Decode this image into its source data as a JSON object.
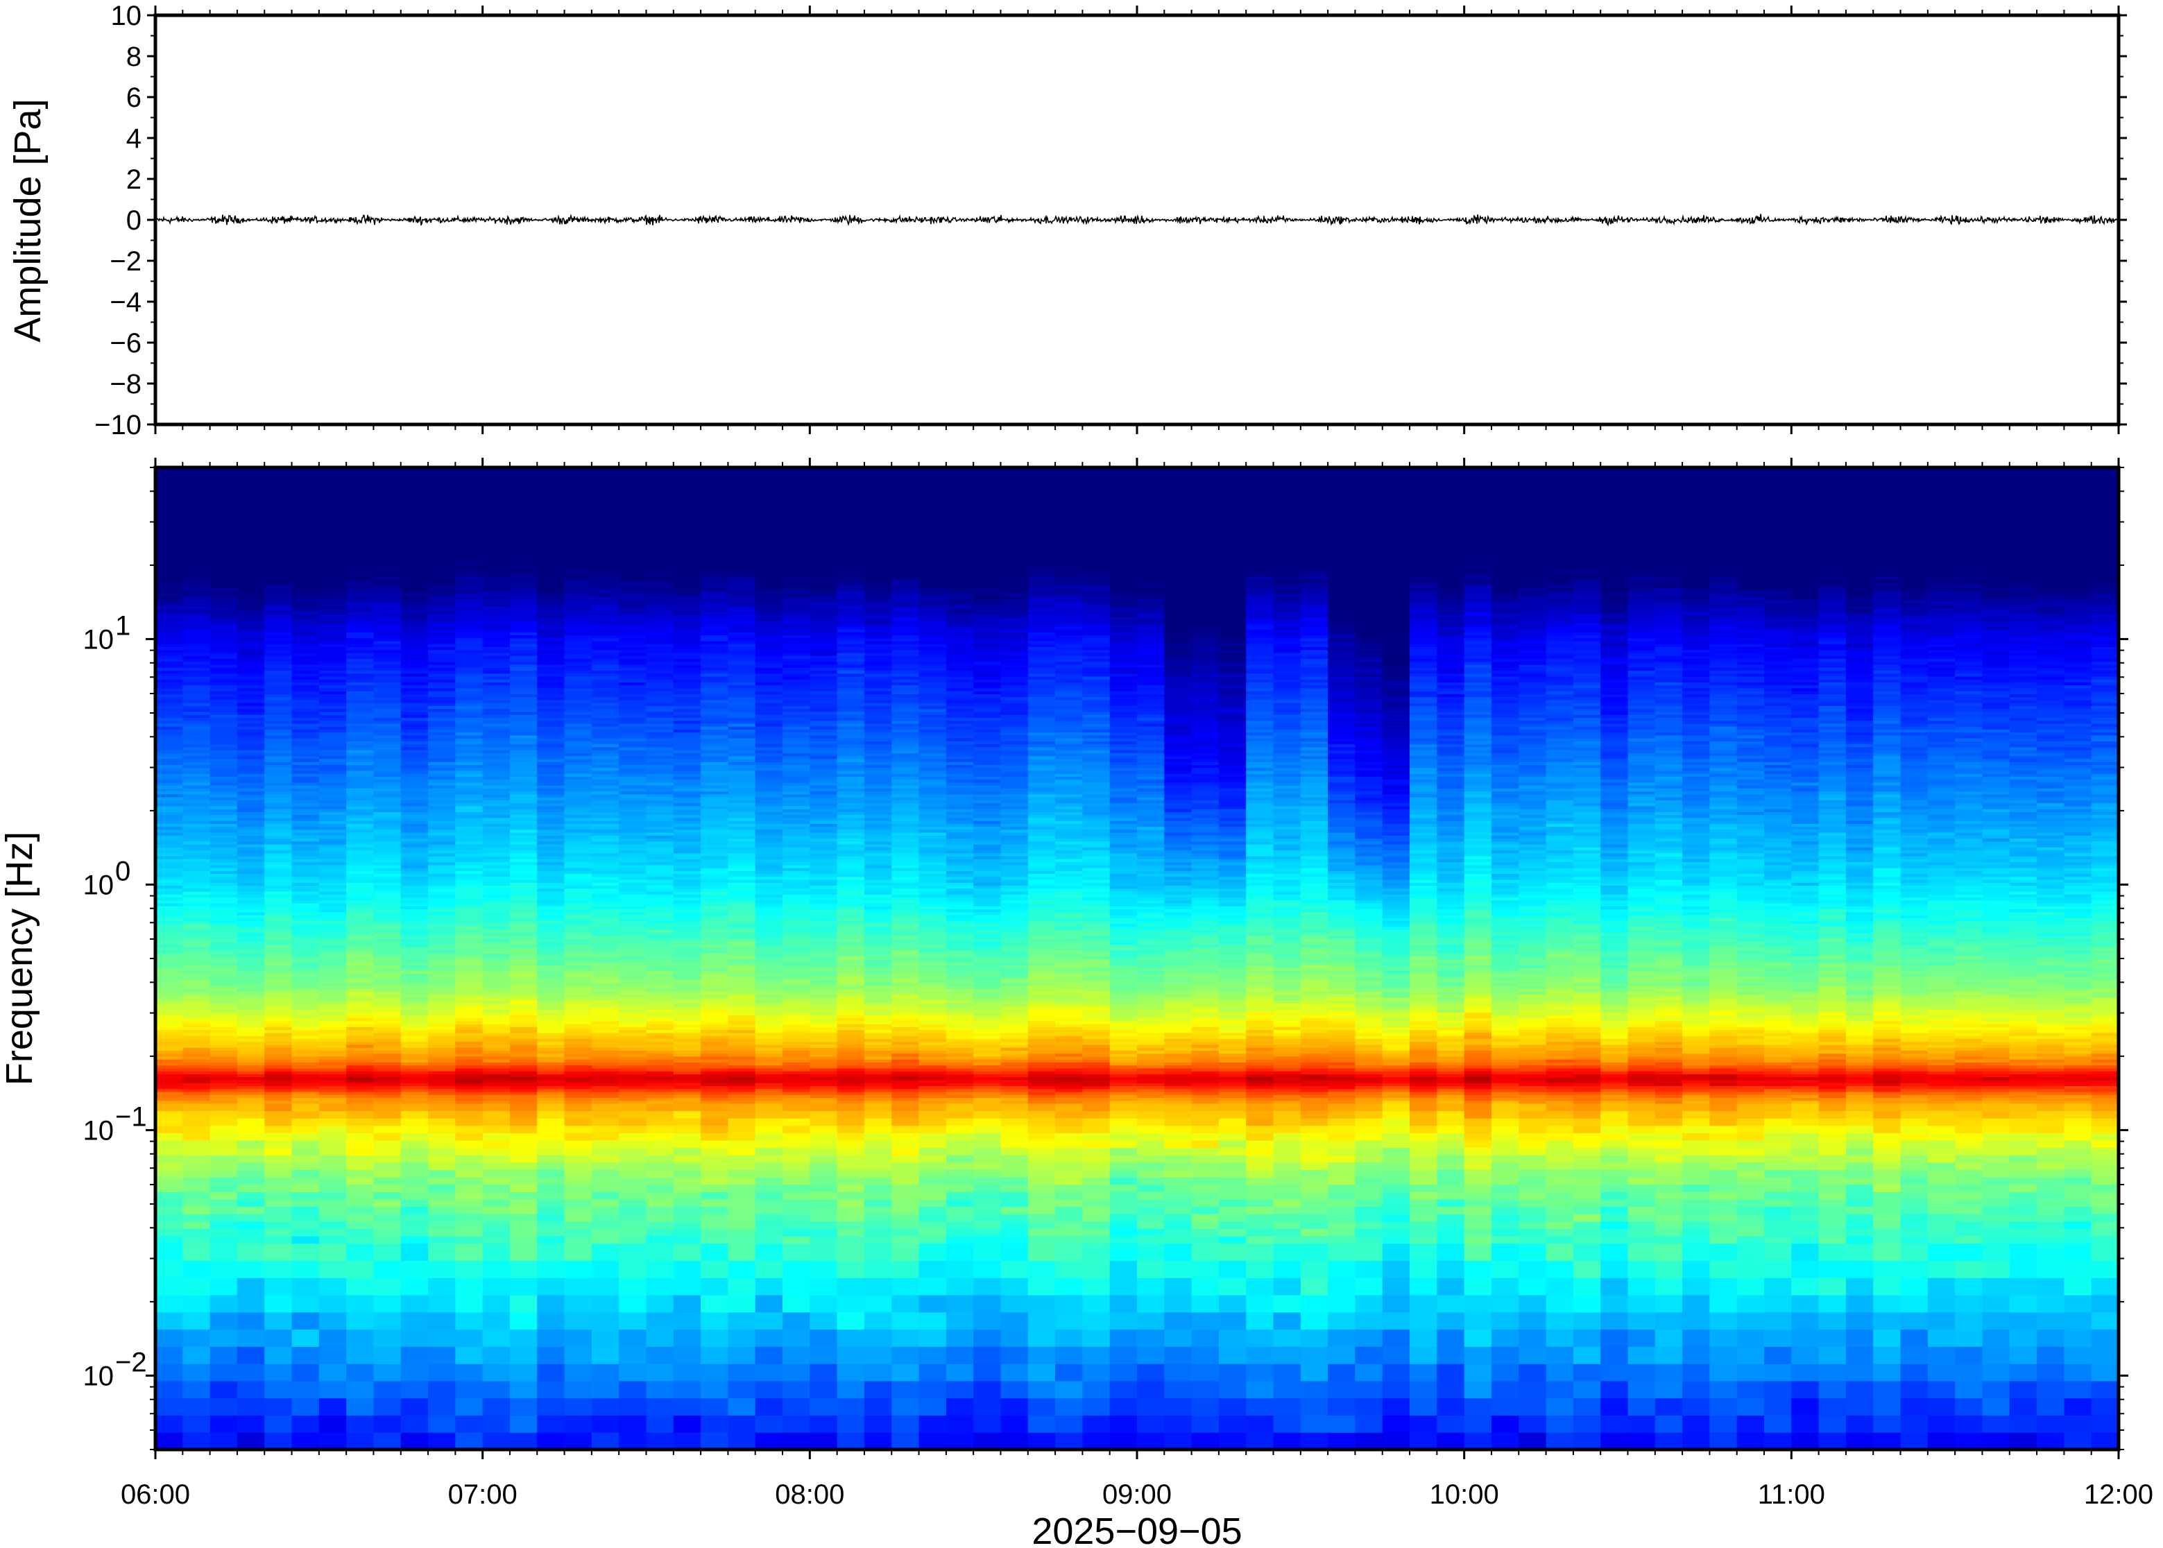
{
  "chart_data": [
    {
      "type": "line",
      "ylabel": "Amplitude [Pa]",
      "ylim": [
        -10,
        10
      ],
      "yticks": [
        "10",
        "8",
        "6",
        "4",
        "2",
        "0",
        "−2",
        "−4",
        "−6",
        "−8",
        "−10"
      ],
      "ytick_values": [
        10,
        8,
        6,
        4,
        2,
        0,
        -2,
        -4,
        -6,
        -8,
        -10
      ],
      "xlim": [
        "06:00",
        "12:00"
      ],
      "series": [
        {
          "color": "#000000",
          "approx_amplitude_pa": 0.3,
          "mean": 0
        }
      ]
    },
    {
      "type": "heatmap",
      "ylabel": "Frequency [Hz]",
      "yscale": "log",
      "ylim": [
        0.005,
        50
      ],
      "ytick_values": [
        10,
        1,
        0.1,
        0.01
      ],
      "yticks": [
        {
          "base": "10",
          "exp": "1"
        },
        {
          "base": "10",
          "exp": "0"
        },
        {
          "base": "10",
          "exp": "−1"
        },
        {
          "base": "10",
          "exp": "−2"
        }
      ],
      "xlabel": "2025−09−05",
      "xticks": [
        "06:00",
        "07:00",
        "08:00",
        "09:00",
        "10:00",
        "11:00",
        "12:00"
      ],
      "xlim": [
        "06:00",
        "12:00"
      ],
      "colormap": "jet",
      "features": {
        "microbarom_peak_hz": 0.16,
        "quiet_intervals_hhmm": [
          [
            "09:05",
            "09:20"
          ],
          [
            "09:35",
            "09:50"
          ]
        ]
      }
    }
  ],
  "colors": {
    "frame": "#000000",
    "background": "#ffffff"
  }
}
